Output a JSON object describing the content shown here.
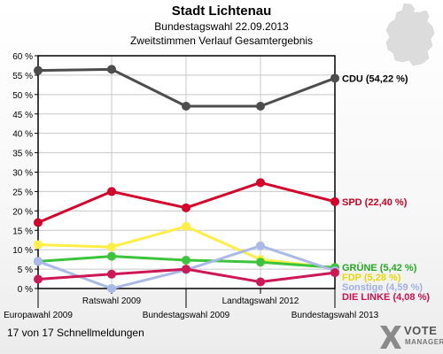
{
  "header": {
    "title": "Stadt Lichtenau",
    "subtitle1": "Bundestagswahl 22.09.2013",
    "subtitle2": "Zweitstimmen Verlauf Gesamtergebnis"
  },
  "footer": {
    "text": "17 von 17 Schnellmeldungen"
  },
  "logo": {
    "line1": "VOTE",
    "line2": "MANAGER"
  },
  "chart_data": {
    "type": "line",
    "title": "Stadt Lichtenau",
    "ylim": [
      0,
      60
    ],
    "yticks": [
      "0 %",
      "5 %",
      "10 %",
      "15 %",
      "20 %",
      "25 %",
      "30 %",
      "35 %",
      "40 %",
      "45 %",
      "50 %",
      "55 %",
      "60 %"
    ],
    "ytick_values": [
      0,
      5,
      10,
      15,
      20,
      25,
      30,
      35,
      40,
      45,
      50,
      55,
      60
    ],
    "categories": [
      "Europawahl 2009",
      "Ratswahl 2009",
      "Bundestagswahl 2009",
      "Landtagswahl 2012",
      "Bundestagswahl 2013"
    ],
    "grid": true,
    "series": [
      {
        "name": "CDU",
        "label": "CDU (54,22 %)",
        "color": "#4d4d4d",
        "label_color": "#000000",
        "values": [
          56.2,
          56.5,
          47.0,
          47.0,
          54.22
        ]
      },
      {
        "name": "SPD",
        "label": "SPD (22,40 %)",
        "color": "#d4002a",
        "label_color": "#cc0022",
        "values": [
          17.0,
          25.0,
          20.8,
          27.3,
          22.4
        ]
      },
      {
        "name": "FDP",
        "label": "FDP (5,28 %)",
        "color": "#ffee44",
        "label_color": "#e8d800",
        "values": [
          11.3,
          10.7,
          16.0,
          7.5,
          5.28
        ]
      },
      {
        "name": "GRÜNE",
        "label": "GRÜNE (5,42 %)",
        "color": "#3cc43c",
        "label_color": "#22aa22",
        "values": [
          7.0,
          8.3,
          7.3,
          6.8,
          5.42
        ]
      },
      {
        "name": "Sonstige",
        "label": "Sonstige (4,59 %)",
        "color": "#aab9e8",
        "label_color": "#a0b0e4",
        "values": [
          7.0,
          0.0,
          4.8,
          11.0,
          4.59
        ]
      },
      {
        "name": "DIE LINKE",
        "label": "DIE LINKE (4,08 %)",
        "color": "#cc1955",
        "label_color": "#cc1050",
        "values": [
          2.4,
          3.7,
          5.0,
          1.7,
          4.08
        ]
      }
    ]
  }
}
